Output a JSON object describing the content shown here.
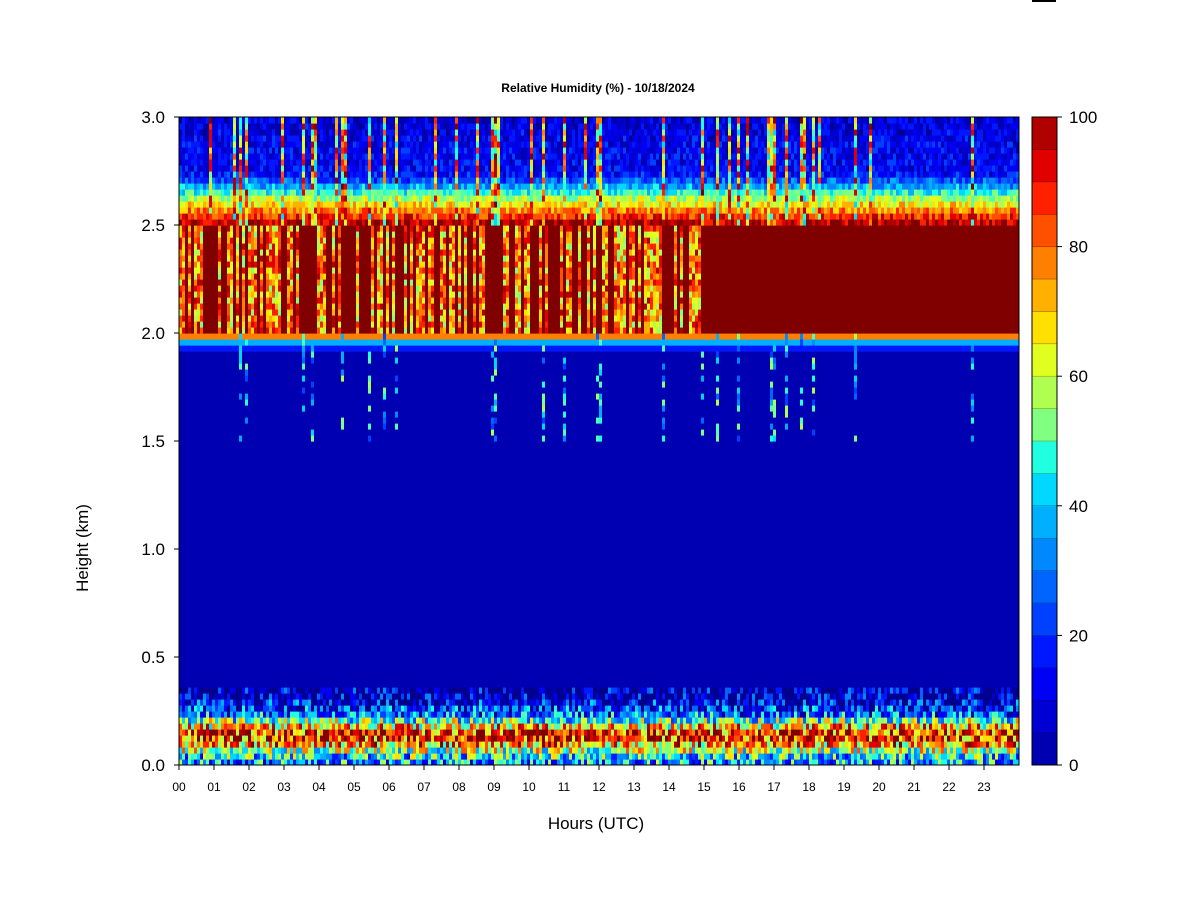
{
  "chart_data": {
    "type": "heatmap",
    "title": "Relative Humidity (%) - 10/18/2024",
    "xlabel": "Hours (UTC)",
    "ylabel": "Height (km)",
    "x_ticks": [
      "00",
      "01",
      "02",
      "03",
      "04",
      "05",
      "06",
      "07",
      "08",
      "09",
      "10",
      "11",
      "12",
      "13",
      "14",
      "15",
      "16",
      "17",
      "18",
      "19",
      "20",
      "21",
      "22",
      "23"
    ],
    "xlim": [
      0,
      24
    ],
    "y_ticks": [
      "0.0",
      "0.5",
      "1.0",
      "1.5",
      "2.0",
      "2.5",
      "3.0"
    ],
    "ylim": [
      0,
      3.0
    ],
    "colorbar": {
      "ticks": [
        "0",
        "20",
        "40",
        "60",
        "80",
        "100"
      ],
      "range": [
        0,
        100
      ],
      "levels": 20,
      "colors": [
        "#00008f",
        "#0000b3",
        "#0000d4",
        "#0000f5",
        "#0018ff",
        "#0040ff",
        "#0064ff",
        "#0088ff",
        "#00b0ff",
        "#00d8ff",
        "#20ffe0",
        "#50ffb0",
        "#80ff80",
        "#b0ff50",
        "#e0ff20",
        "#ffe000",
        "#ffb000",
        "#ff8000",
        "#ff5000",
        "#ff2000",
        "#e00000",
        "#b00000",
        "#800000"
      ]
    },
    "profile": [
      {
        "height_km": 0.0,
        "rh": 30
      },
      {
        "height_km": 0.05,
        "rh": 45
      },
      {
        "height_km": 0.1,
        "rh": 75
      },
      {
        "height_km": 0.14,
        "rh": 92
      },
      {
        "height_km": 0.18,
        "rh": 70
      },
      {
        "height_km": 0.24,
        "rh": 25
      },
      {
        "height_km": 0.32,
        "rh": 5
      },
      {
        "height_km": 1.9,
        "rh": 5
      },
      {
        "height_km": 1.96,
        "rh": 35
      },
      {
        "height_km": 2.0,
        "rh": 100
      },
      {
        "height_km": 2.5,
        "rh": 100
      },
      {
        "height_km": 2.56,
        "rh": 80
      },
      {
        "height_km": 2.62,
        "rh": 60
      },
      {
        "height_km": 2.68,
        "rh": 35
      },
      {
        "height_km": 2.74,
        "rh": 15
      },
      {
        "height_km": 3.0,
        "rh": 10
      }
    ],
    "notes": "High humidity layer 2.0-2.5 km, persistent near-saturation after 15 UTC; moist boundary layer below 0.3 km peaking near 0.15 km; dry mid-layer 0.3-1.9 km."
  }
}
